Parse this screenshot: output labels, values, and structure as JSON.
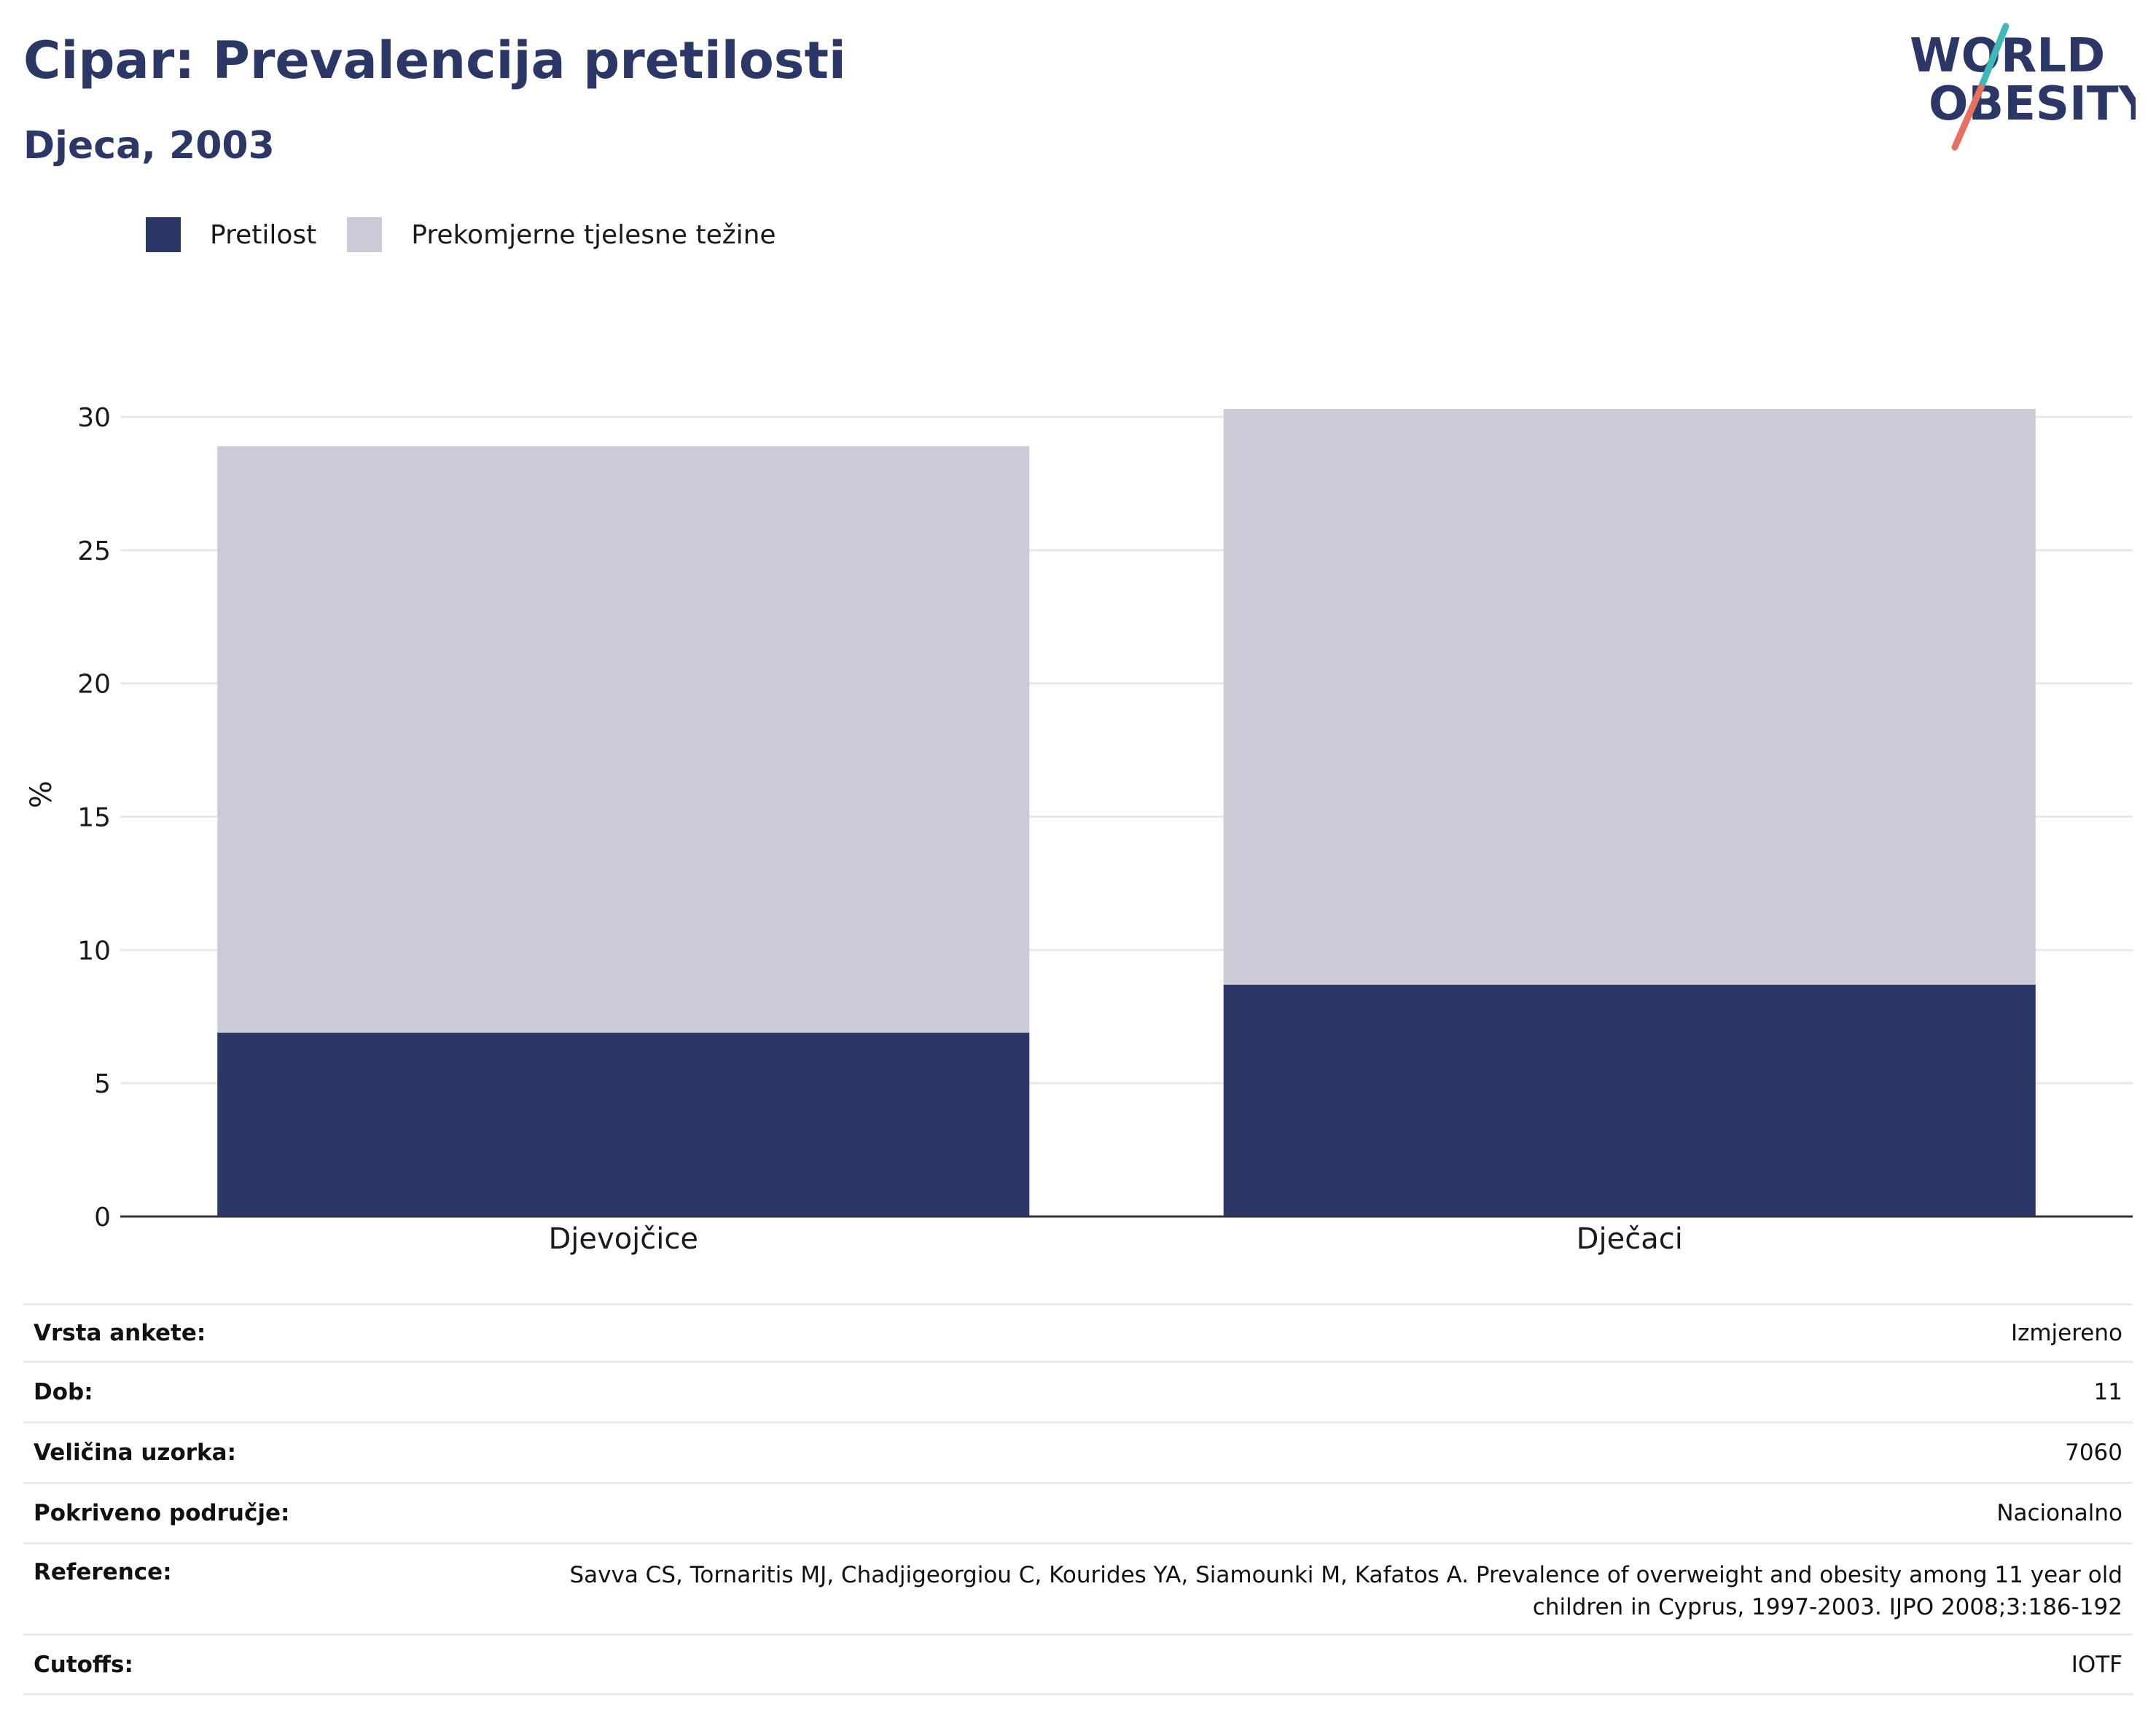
{
  "header": {
    "title": "Cipar: Prevalencija pretilosti",
    "subtitle": "Djeca, 2003"
  },
  "logo": {
    "line1": "WORLD",
    "line2": "OBESITY",
    "text_color": "#2b3766",
    "slash_top_color": "#3fb8b8",
    "slash_bottom_color": "#e8705f"
  },
  "legend": [
    {
      "label": "Pretilost",
      "color": "#2b3766"
    },
    {
      "label": "Prekomjerne tjelesne težine",
      "color": "#cacbd7"
    }
  ],
  "chart_data": {
    "type": "bar",
    "stacked": true,
    "categories": [
      "Djevojčice",
      "Dječaci"
    ],
    "series": [
      {
        "name": "Pretilost",
        "values": [
          6.9,
          8.7
        ],
        "color": "#2b3766"
      },
      {
        "name": "Prekomjerne tjelesne težine",
        "values": [
          22.0,
          21.6
        ],
        "color": "#cacbd7"
      }
    ],
    "ylabel": "%",
    "ylim": [
      0,
      30
    ],
    "yticks": [
      0,
      5,
      10,
      15,
      20,
      25,
      30
    ],
    "grid": true,
    "legend_position": "top-left"
  },
  "info": [
    {
      "key": "Vrsta ankete:",
      "value": "Izmjereno"
    },
    {
      "key": "Dob:",
      "value": "11"
    },
    {
      "key": "Veličina uzorka:",
      "value": "7060"
    },
    {
      "key": "Pokriveno područje:",
      "value": "Nacionalno"
    },
    {
      "key": "Reference:",
      "value": "Savva CS, Tornaritis MJ, Chadjigeorgiou C, Kourides YA, Siamounki M, Kafatos A. Prevalence of overweight and obesity among 11 year old children in Cyprus, 1997-2003. IJPO 2008;3:186-192"
    },
    {
      "key": "Cutoffs:",
      "value": "IOTF"
    }
  ]
}
